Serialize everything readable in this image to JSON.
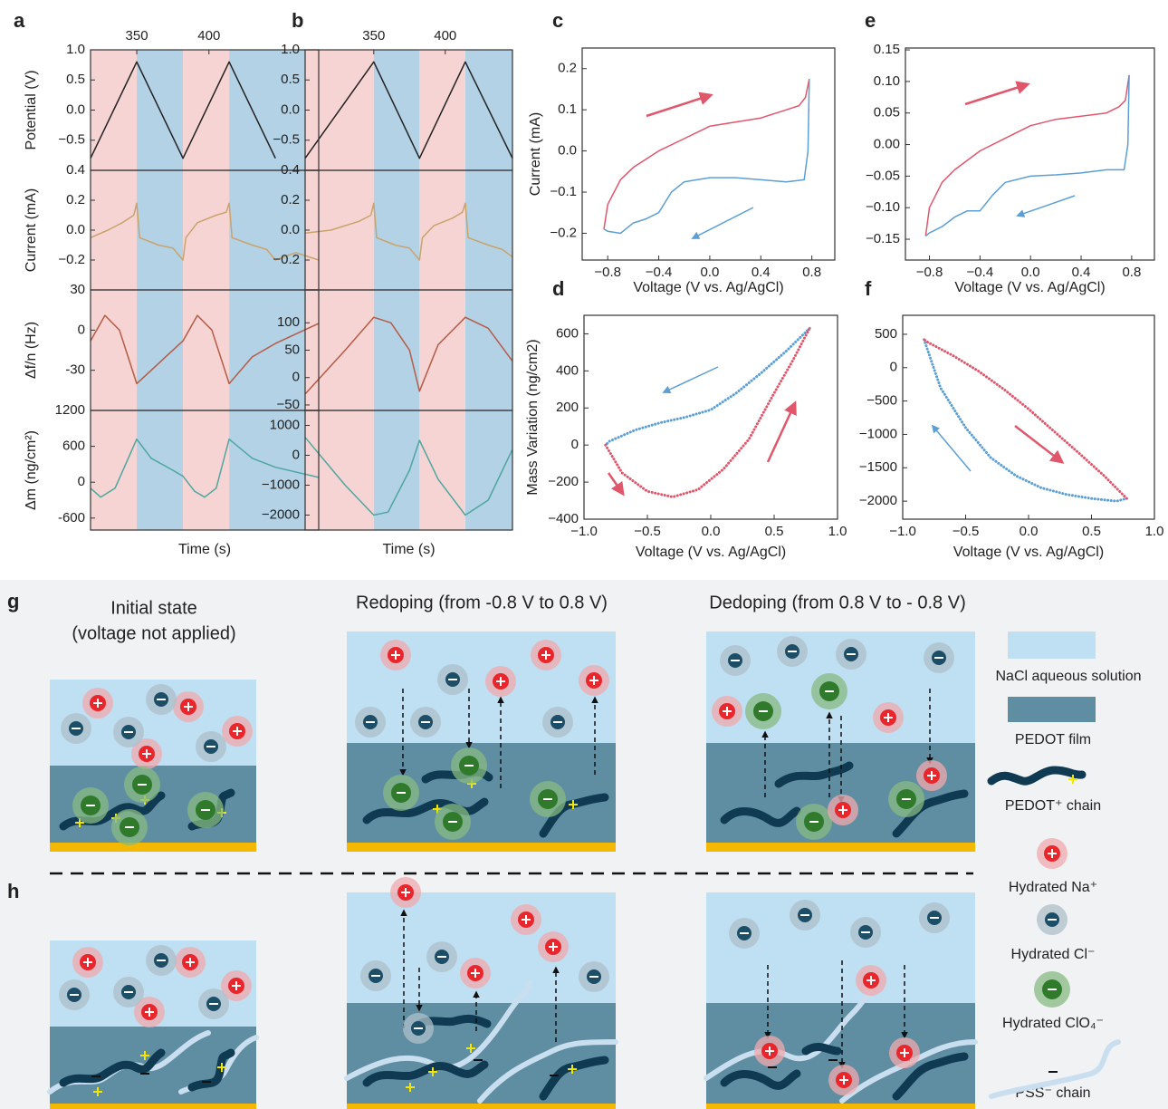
{
  "chart_data": [
    {
      "type": "line",
      "panel": "a",
      "ylabel": "Potential (V)",
      "xlim": [
        318,
        476
      ],
      "xticks": [
        350,
        400
      ],
      "ylim": [
        -1,
        1
      ],
      "yticks": [
        {
          "value": 1,
          "label": "1.0"
        },
        0.5,
        {
          "value": 0,
          "label": "0.0"
        },
        {
          "value": -0.5,
          "label": "−0.5"
        }
      ],
      "bands": [
        {
          "start": 318,
          "end": 350,
          "color": "#f6d4d3"
        },
        {
          "start": 350,
          "end": 382,
          "color": "#b3d2e5"
        },
        {
          "start": 382,
          "end": 414,
          "color": "#f6d4d3"
        },
        {
          "start": 414,
          "end": 476,
          "color": "#b3d2e5"
        }
      ],
      "series": [
        {
          "color": "#222222",
          "x": [
            318,
            350,
            382,
            414,
            446
          ],
          "values": [
            -0.8,
            0.8,
            -0.8,
            0.8,
            -0.8
          ]
        }
      ]
    },
    {
      "type": "line",
      "ylabel": "Current (mA)",
      "xlim": [
        318,
        476
      ],
      "ylim": [
        -0.4,
        0.4
      ],
      "yticks": [
        0.4,
        0.2,
        {
          "value": 0,
          "label": "0.0"
        },
        {
          "value": -0.2,
          "label": "−0.2"
        }
      ],
      "series": [
        {
          "color": "#c9a36c",
          "x": [
            318,
            330,
            340,
            348,
            350,
            352,
            365,
            375,
            382,
            384,
            392,
            405,
            412,
            414,
            416,
            430,
            440,
            446,
            460,
            476
          ],
          "values": [
            -0.05,
            0.0,
            0.05,
            0.1,
            0.18,
            -0.05,
            -0.1,
            -0.12,
            -0.2,
            -0.05,
            0.05,
            0.1,
            0.12,
            0.18,
            -0.05,
            -0.1,
            -0.13,
            -0.2,
            -0.15,
            -0.2
          ]
        }
      ]
    },
    {
      "type": "line",
      "ylabel": "Δf/n (Hz)",
      "xlim": [
        318,
        476
      ],
      "ylim": [
        -60,
        30
      ],
      "yticks": [
        30,
        0,
        -30
      ],
      "series": [
        {
          "color": "#b55b45",
          "x": [
            318,
            328,
            338,
            350,
            360,
            372,
            382,
            392,
            402,
            414,
            430,
            446,
            476
          ],
          "values": [
            -8,
            11,
            0,
            -40,
            -30,
            -18,
            -8,
            11,
            0,
            -40,
            -20,
            -10,
            5
          ]
        }
      ]
    },
    {
      "type": "line",
      "ylabel": "Δm (ng/cm²)",
      "xlabel": "Time (s)",
      "xlim": [
        318,
        476
      ],
      "ylim": [
        -800,
        1200
      ],
      "yticks": [
        1200,
        600,
        0,
        -600
      ],
      "series": [
        {
          "color": "#4ea6a0",
          "x": [
            318,
            325,
            335,
            350,
            360,
            375,
            382,
            390,
            397,
            405,
            414,
            430,
            446,
            476
          ],
          "values": [
            -100,
            -250,
            -100,
            720,
            400,
            200,
            100,
            -150,
            -250,
            -100,
            720,
            400,
            250,
            80
          ]
        }
      ]
    },
    {
      "type": "line",
      "panel": "b",
      "xlim": [
        302,
        447
      ],
      "xticks": [
        350,
        400
      ],
      "ylim": [
        -1,
        1
      ],
      "yticks": [
        {
          "value": 1,
          "label": "1.0"
        },
        0.5,
        {
          "value": 0,
          "label": "0.0"
        },
        {
          "value": -0.5,
          "label": "−0.5"
        }
      ],
      "bands": [
        {
          "start": 302,
          "end": 350,
          "color": "#f6d4d3"
        },
        {
          "start": 350,
          "end": 382,
          "color": "#b3d2e5"
        },
        {
          "start": 382,
          "end": 414,
          "color": "#f6d4d3"
        },
        {
          "start": 414,
          "end": 447,
          "color": "#b3d2e5"
        }
      ],
      "series": [
        {
          "color": "#222222",
          "x": [
            302,
            350,
            382,
            414,
            447
          ],
          "values": [
            -0.8,
            0.8,
            -0.8,
            0.8,
            -0.8
          ]
        }
      ]
    },
    {
      "type": "line",
      "xlim": [
        302,
        447
      ],
      "ylim": [
        -0.4,
        0.4
      ],
      "yticks": [
        0.4,
        0.2,
        {
          "value": 0,
          "label": "0.0"
        },
        {
          "value": -0.2,
          "label": "−0.2"
        }
      ],
      "series": [
        {
          "color": "#c9a36c",
          "x": [
            302,
            320,
            340,
            348,
            350,
            352,
            365,
            375,
            382,
            384,
            392,
            405,
            412,
            414,
            416,
            430,
            440,
            447
          ],
          "values": [
            -0.02,
            0.0,
            0.06,
            0.1,
            0.18,
            -0.05,
            -0.1,
            -0.12,
            -0.2,
            -0.05,
            0.03,
            0.08,
            0.12,
            0.18,
            -0.05,
            -0.1,
            -0.13,
            -0.18
          ]
        }
      ]
    },
    {
      "type": "line",
      "xlim": [
        302,
        447
      ],
      "ylim": [
        -60,
        160
      ],
      "yticks": [
        100,
        50,
        0,
        {
          "value": -50,
          "label": "−50"
        }
      ],
      "series": [
        {
          "color": "#b55b45",
          "x": [
            302,
            330,
            350,
            362,
            375,
            382,
            395,
            414,
            430,
            447
          ],
          "values": [
            -30,
            50,
            110,
            100,
            50,
            -25,
            60,
            110,
            90,
            30
          ]
        }
      ]
    },
    {
      "type": "line",
      "xlabel": "Time (s)",
      "xlim": [
        302,
        447
      ],
      "ylim": [
        -2500,
        1500
      ],
      "yticks": [
        1000,
        0,
        {
          "value": -1000,
          "label": "−1000"
        },
        {
          "value": -2000,
          "label": "−2000"
        }
      ],
      "series": [
        {
          "color": "#4ea6a0",
          "x": [
            302,
            330,
            350,
            360,
            375,
            382,
            395,
            414,
            430,
            447
          ],
          "values": [
            600,
            -1000,
            -2000,
            -1900,
            -500,
            500,
            -800,
            -2000,
            -1500,
            200
          ]
        }
      ]
    },
    {
      "type": "line",
      "panel": "c",
      "ylabel": "Current (mA)",
      "xlabel": "Voltage (V vs. Ag/AgCl)",
      "xlim": [
        -1.0,
        0.98
      ],
      "ylim": [
        -0.265,
        0.25
      ],
      "xticks": [
        {
          "value": -0.8,
          "label": "−0.8"
        },
        {
          "value": -0.4,
          "label": "−0.4"
        },
        {
          "value": 0,
          "label": "0.0"
        },
        0.4,
        0.8
      ],
      "yticks": [
        0.2,
        0.1,
        {
          "value": 0,
          "label": "0.0"
        },
        {
          "value": -0.1,
          "label": "−0.1"
        },
        {
          "value": -0.2,
          "label": "−0.2"
        }
      ],
      "series": [
        {
          "color": "#e0566b",
          "x": [
            -0.83,
            -0.8,
            -0.7,
            -0.6,
            -0.4,
            -0.2,
            0,
            0.2,
            0.4,
            0.6,
            0.7,
            0.75,
            0.78
          ],
          "values": [
            -0.19,
            -0.13,
            -0.07,
            -0.04,
            0.0,
            0.03,
            0.06,
            0.07,
            0.08,
            0.1,
            0.11,
            0.13,
            0.175
          ]
        },
        {
          "color": "#5b9fd4",
          "x": [
            0.78,
            0.77,
            0.74,
            0.6,
            0.4,
            0.2,
            0,
            -0.2,
            -0.3,
            -0.4,
            -0.5,
            -0.6,
            -0.7,
            -0.8,
            -0.83
          ],
          "values": [
            0.175,
            0.0,
            -0.07,
            -0.075,
            -0.07,
            -0.065,
            -0.065,
            -0.075,
            -0.1,
            -0.15,
            -0.165,
            -0.175,
            -0.2,
            -0.195,
            -0.19
          ]
        }
      ]
    },
    {
      "type": "line",
      "panel": "d",
      "ylabel": "Mass Variation (ng/cm2)",
      "xlabel": "Voltage (V vs. Ag/AgCl)",
      "xlim": [
        -1,
        1
      ],
      "ylim": [
        -400,
        700
      ],
      "line_style": "dotted",
      "xticks": [
        {
          "value": -1,
          "label": "−1.0"
        },
        {
          "value": -0.5,
          "label": "−0.5"
        },
        {
          "value": 0,
          "label": "0.0"
        },
        0.5,
        {
          "value": 1,
          "label": "1.0"
        }
      ],
      "yticks": [
        600,
        400,
        200,
        0,
        {
          "value": -200,
          "label": "−200"
        },
        {
          "value": -400,
          "label": "−400"
        }
      ],
      "series": [
        {
          "color": "#5b9fd4",
          "x": [
            0.78,
            0.6,
            0.4,
            0.2,
            0,
            -0.2,
            -0.4,
            -0.6,
            -0.8,
            -0.83
          ],
          "values": [
            630,
            510,
            390,
            280,
            190,
            150,
            120,
            80,
            20,
            0
          ]
        },
        {
          "color": "#e0566b",
          "x": [
            -0.83,
            -0.7,
            -0.5,
            -0.3,
            -0.1,
            0.1,
            0.3,
            0.5,
            0.65,
            0.78
          ],
          "values": [
            0,
            -150,
            -250,
            -280,
            -240,
            -130,
            30,
            280,
            460,
            630
          ]
        }
      ]
    },
    {
      "type": "line",
      "panel": "e",
      "xlabel": "Voltage (V vs. Ag/AgCl)",
      "xlim": [
        -0.99,
        0.98
      ],
      "ylim": [
        -0.183,
        0.153
      ],
      "xticks": [
        {
          "value": -0.8,
          "label": "−0.8"
        },
        {
          "value": -0.4,
          "label": "−0.4"
        },
        {
          "value": 0,
          "label": "0.0"
        },
        0.4,
        0.8
      ],
      "yticks": [
        0.15,
        {
          "value": 0.1,
          "label": "0.10"
        },
        0.05,
        {
          "value": 0,
          "label": "0.00"
        },
        {
          "value": -0.05,
          "label": "−0.05"
        },
        {
          "value": -0.1,
          "label": "−0.10"
        },
        {
          "value": -0.15,
          "label": "−0.15"
        }
      ],
      "series": [
        {
          "color": "#e0566b",
          "x": [
            -0.83,
            -0.8,
            -0.7,
            -0.6,
            -0.4,
            -0.2,
            0,
            0.2,
            0.4,
            0.6,
            0.7,
            0.75,
            0.78
          ],
          "values": [
            -0.145,
            -0.1,
            -0.06,
            -0.04,
            -0.01,
            0.01,
            0.03,
            0.04,
            0.045,
            0.05,
            0.06,
            0.07,
            0.11
          ]
        },
        {
          "color": "#5b9fd4",
          "x": [
            0.78,
            0.77,
            0.74,
            0.6,
            0.4,
            0.2,
            0,
            -0.2,
            -0.3,
            -0.4,
            -0.5,
            -0.6,
            -0.7,
            -0.8,
            -0.83
          ],
          "values": [
            0.11,
            0.0,
            -0.04,
            -0.04,
            -0.045,
            -0.048,
            -0.05,
            -0.06,
            -0.08,
            -0.105,
            -0.105,
            -0.115,
            -0.13,
            -0.14,
            -0.145
          ]
        }
      ]
    },
    {
      "type": "line",
      "panel": "f",
      "xlabel": "Voltage (V vs. Ag/AgCl)",
      "xlim": [
        -1,
        1
      ],
      "ylim": [
        -2270,
        784
      ],
      "line_style": "dotted",
      "xticks": [
        {
          "value": -1,
          "label": "−1.0"
        },
        {
          "value": -0.5,
          "label": "−0.5"
        },
        {
          "value": 0,
          "label": "0.0"
        },
        0.5,
        {
          "value": 1,
          "label": "1.0"
        }
      ],
      "yticks": [
        500,
        0,
        {
          "value": -500,
          "label": "−500"
        },
        {
          "value": -1000,
          "label": "−1000"
        },
        {
          "value": -1500,
          "label": "−1500"
        },
        {
          "value": -2000,
          "label": "−2000"
        }
      ],
      "series": [
        {
          "color": "#5b9fd4",
          "x": [
            -0.83,
            -0.7,
            -0.5,
            -0.3,
            -0.1,
            0.1,
            0.3,
            0.5,
            0.7,
            0.78
          ],
          "values": [
            420,
            -300,
            -900,
            -1350,
            -1620,
            -1800,
            -1900,
            -1960,
            -2000,
            -1960
          ]
        },
        {
          "color": "#e0566b",
          "x": [
            0.78,
            0.6,
            0.4,
            0.2,
            0,
            -0.2,
            -0.4,
            -0.6,
            -0.8,
            -0.83
          ],
          "values": [
            -1960,
            -1620,
            -1280,
            -950,
            -620,
            -320,
            -50,
            180,
            380,
            420
          ]
        }
      ]
    }
  ],
  "diagram": {
    "g_label": "g",
    "h_label": "h",
    "headings": [
      "Initial state",
      "(voltage not applied)",
      "Redoping (from -0.8 V to 0.8 V)",
      "Dedoping (from 0.8 V to - 0.8 V)"
    ],
    "legend": [
      "NaCl aqueous solution",
      "PEDOT film",
      "PEDOT⁺ chain",
      "Hydrated Na⁺",
      "Hydrated Cl⁻",
      "Hydrated ClO₄⁻",
      "PSS⁻ chain"
    ]
  }
}
